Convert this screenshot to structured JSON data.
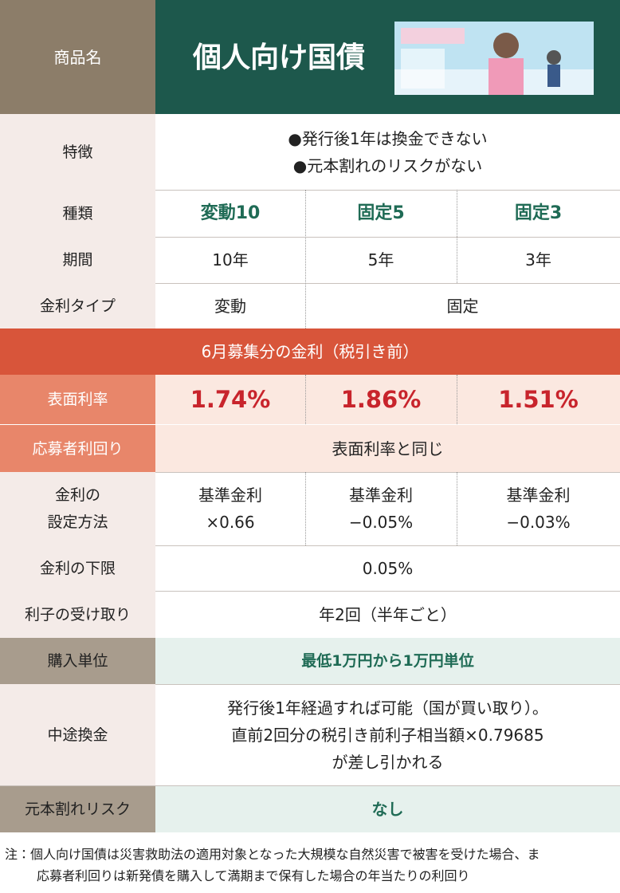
{
  "header": {
    "label": "商品名",
    "title": "個人向け国債"
  },
  "features": {
    "label": "特徴",
    "lines": [
      "●発行後1年は換金できない",
      "●元本割れのリスクがない"
    ]
  },
  "types": {
    "label": "種類",
    "values": [
      "変動10",
      "固定5",
      "固定3"
    ]
  },
  "terms": {
    "label": "期間",
    "values": [
      "10年",
      "5年",
      "3年"
    ]
  },
  "rate_type": {
    "label": "金利タイプ",
    "values": [
      "変動",
      "固定"
    ]
  },
  "rate_banner": "6月募集分の金利（税引き前）",
  "coupon": {
    "label": "表面利率",
    "values": [
      "1.74%",
      "1.86%",
      "1.51%"
    ]
  },
  "yield": {
    "label": "応募者利回り",
    "value": "表面利率と同じ"
  },
  "setting": {
    "label": [
      "金利の",
      "設定方法"
    ],
    "values": [
      [
        "基準金利",
        "×0.66"
      ],
      [
        "基準金利",
        "−0.05%"
      ],
      [
        "基準金利",
        "−0.03%"
      ]
    ]
  },
  "floor": {
    "label": "金利の下限",
    "value": "0.05%"
  },
  "interest": {
    "label": "利子の受け取り",
    "value": "年2回（半年ごと）"
  },
  "unit": {
    "label": "購入単位",
    "value": "最低1万円から1万円単位"
  },
  "early": {
    "label": "中途換金",
    "lines": [
      "発行後1年経過すれば可能（国が買い取り）。",
      "直前2回分の税引き前利子相当額×0.79685",
      "が差し引かれる"
    ]
  },
  "risk": {
    "label": "元本割れリスク",
    "value": "なし"
  },
  "note": [
    "注：個人向け国債は災害救助法の適用対象となった大規模な自然災害で被害を受けた場合、ま",
    "応募者利回りは新発債を購入して満期まで保有した場合の年当たりの利回り"
  ]
}
